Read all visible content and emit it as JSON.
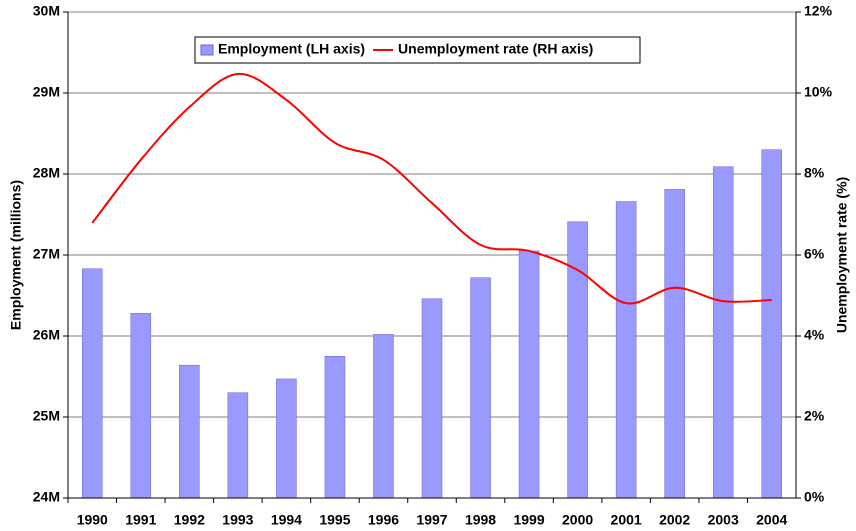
{
  "chart_data": {
    "type": "bar-line",
    "categories": [
      "1990",
      "1991",
      "1992",
      "1993",
      "1994",
      "1995",
      "1996",
      "1997",
      "1998",
      "1999",
      "2000",
      "2001",
      "2002",
      "2003",
      "2004"
    ],
    "series": [
      {
        "name": "Employment (LH axis)",
        "type": "bar",
        "color": "#9999ff",
        "values": [
          26.83,
          26.28,
          25.64,
          25.3,
          25.47,
          25.75,
          26.02,
          26.46,
          26.72,
          27.05,
          27.41,
          27.66,
          27.81,
          28.09,
          28.3
        ]
      },
      {
        "name": "Unemployment rate (RH axis)",
        "type": "line",
        "axis": "y2",
        "color": "#ff0000",
        "values": [
          6.79,
          8.35,
          9.65,
          10.47,
          9.83,
          8.77,
          8.35,
          7.28,
          6.25,
          6.1,
          5.63,
          4.81,
          5.19,
          4.86,
          4.89
        ]
      }
    ],
    "ylabel": "Employment (millions)",
    "y2label": "Unemployment rate (%)",
    "ylim": [
      24,
      30
    ],
    "yticks": [
      {
        "value": 24,
        "label": "24M"
      },
      {
        "value": 25,
        "label": "25M"
      },
      {
        "value": 26,
        "label": "26M"
      },
      {
        "value": 27,
        "label": "27M"
      },
      {
        "value": 28,
        "label": "28M"
      },
      {
        "value": 29,
        "label": "29M"
      },
      {
        "value": 30,
        "label": "30M"
      }
    ],
    "y2lim": [
      0,
      12
    ],
    "y2ticks": [
      {
        "value": 0,
        "label": "0%"
      },
      {
        "value": 2,
        "label": "2%"
      },
      {
        "value": 4,
        "label": "4%"
      },
      {
        "value": 6,
        "label": "6%"
      },
      {
        "value": 8,
        "label": "8%"
      },
      {
        "value": 10,
        "label": "10%"
      },
      {
        "value": 12,
        "label": "12%"
      }
    ],
    "grid": true,
    "legend": "top"
  }
}
